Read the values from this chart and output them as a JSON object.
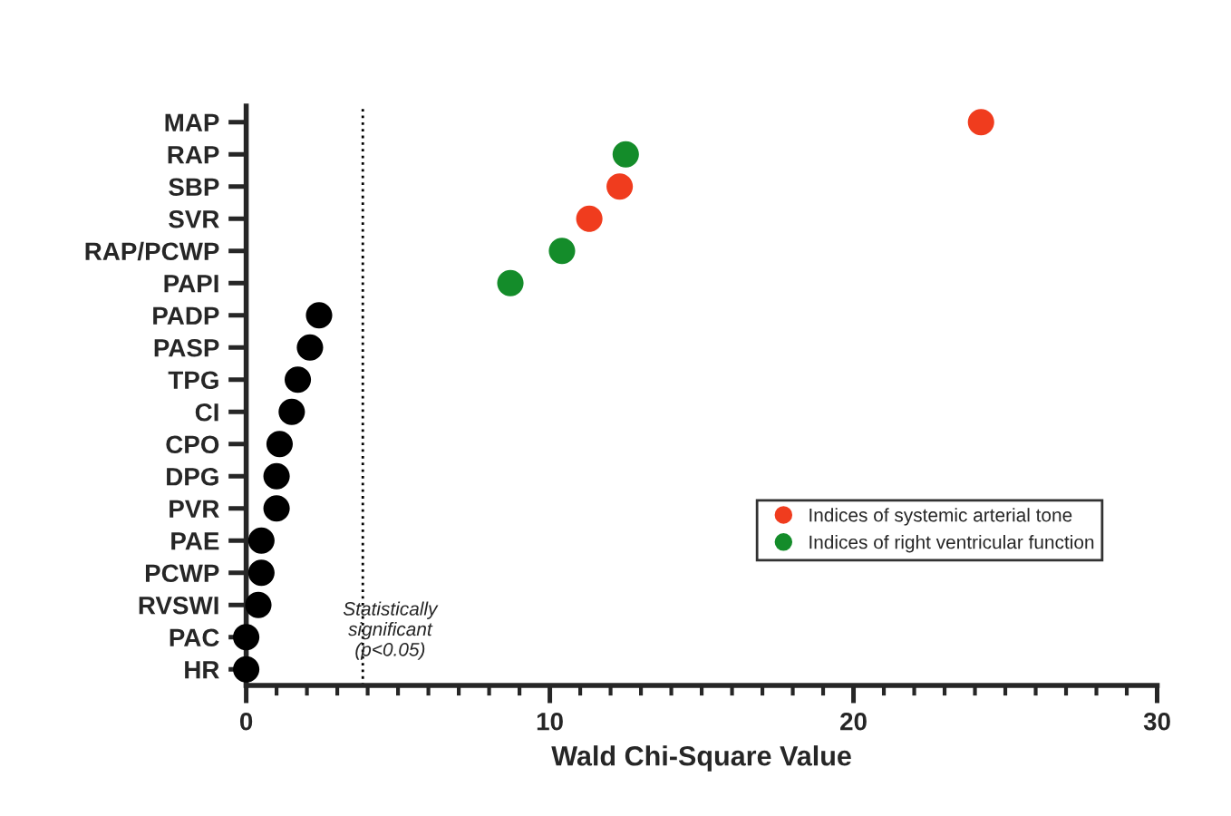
{
  "chart_data": {
    "type": "scatter",
    "orientation": "horizontal",
    "xlabel": "Wald Chi-Square Value",
    "categories": [
      "MAP",
      "RAP",
      "SBP",
      "SVR",
      "RAP/PCWP",
      "PAPI",
      "PADP",
      "PASP",
      "TPG",
      "CI",
      "CPO",
      "DPG",
      "PVR",
      "PAE",
      "PCWP",
      "RVSWI",
      "PAC",
      "HR"
    ],
    "series": [
      {
        "color": "#000000",
        "values": [
          null,
          null,
          null,
          null,
          null,
          null,
          2.4,
          2.1,
          1.7,
          1.5,
          1.1,
          1.0,
          1.0,
          0.5,
          0.5,
          0.4,
          0,
          0
        ]
      },
      {
        "name": "Indices of systemic arterial tone",
        "color": "#f03c1e",
        "values": [
          24.2,
          null,
          12.3,
          11.3,
          null,
          null,
          null,
          null,
          null,
          null,
          null,
          null,
          null,
          null,
          null,
          null,
          null,
          null
        ]
      },
      {
        "name": "Indices of right ventricular function",
        "color": "#148c2a",
        "values": [
          null,
          12.5,
          null,
          null,
          10.4,
          8.7,
          null,
          null,
          null,
          null,
          null,
          null,
          null,
          null,
          null,
          null,
          null,
          null
        ]
      }
    ],
    "xlim": [
      0,
      30
    ],
    "xticks": [
      0,
      10,
      20,
      30
    ],
    "ref_lines": [
      {
        "axis": "x",
        "value": 3.84,
        "label": "Statistically\nsignificant\n(p<0.05)",
        "color": "#000000",
        "line_style": "dotted"
      }
    ],
    "legend": "bottom right",
    "grid": false,
    "marker": "circle"
  }
}
